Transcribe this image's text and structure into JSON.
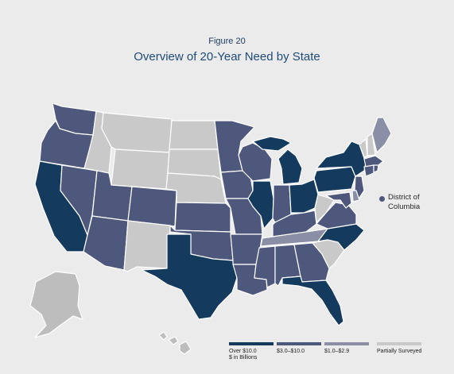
{
  "figure": {
    "label": "Figure 20",
    "title": "Overview of 20-Year Need by State"
  },
  "colors": {
    "over_10": "#143a5e",
    "range_3_10": "#4e587c",
    "range_1_29": "#8a8fa6",
    "partial": "#c9c9c9",
    "alaska_hawaii": "#bdbdbd"
  },
  "dc": {
    "line1": "District of",
    "line2": "Columbia",
    "category": "range_3_10"
  },
  "legend": [
    {
      "key": "over_10",
      "label": "Over $10.0",
      "sublabel": "$ in Billions"
    },
    {
      "key": "range_3_10",
      "label": "$3.0–$10.0",
      "sublabel": ""
    },
    {
      "key": "range_1_29",
      "label": "$1.0–$2.9",
      "sublabel": ""
    },
    {
      "key": "partial",
      "label": "Partially Surveyed",
      "sublabel": ""
    }
  ],
  "states": {
    "WA": "range_3_10",
    "OR": "range_3_10",
    "CA": "over_10",
    "NV": "range_3_10",
    "ID": "partial",
    "MT": "partial",
    "WY": "partial",
    "UT": "range_3_10",
    "AZ": "range_3_10",
    "CO": "range_3_10",
    "NM": "partial",
    "ND": "partial",
    "SD": "partial",
    "NE": "partial",
    "KS": "range_3_10",
    "OK": "range_3_10",
    "TX": "over_10",
    "MN": "range_3_10",
    "IA": "range_3_10",
    "MO": "range_3_10",
    "AR": "range_3_10",
    "LA": "range_3_10",
    "WI": "range_3_10",
    "IL": "over_10",
    "MI": "over_10",
    "IN": "range_3_10",
    "OH": "over_10",
    "KY": "range_3_10",
    "TN": "range_1_29",
    "MS": "range_3_10",
    "AL": "range_3_10",
    "GA": "range_3_10",
    "FL": "over_10",
    "SC": "partial",
    "NC": "over_10",
    "VA": "range_3_10",
    "WV": "partial",
    "PA": "over_10",
    "NY": "over_10",
    "VT": "partial",
    "NH": "partial",
    "ME": "range_1_29",
    "MA": "range_3_10",
    "CT": "range_3_10",
    "RI": "range_3_10",
    "NJ": "range_3_10",
    "DE": "range_1_29",
    "MD": "range_3_10",
    "AK": "alaska_hawaii",
    "HI": "alaska_hawaii"
  }
}
